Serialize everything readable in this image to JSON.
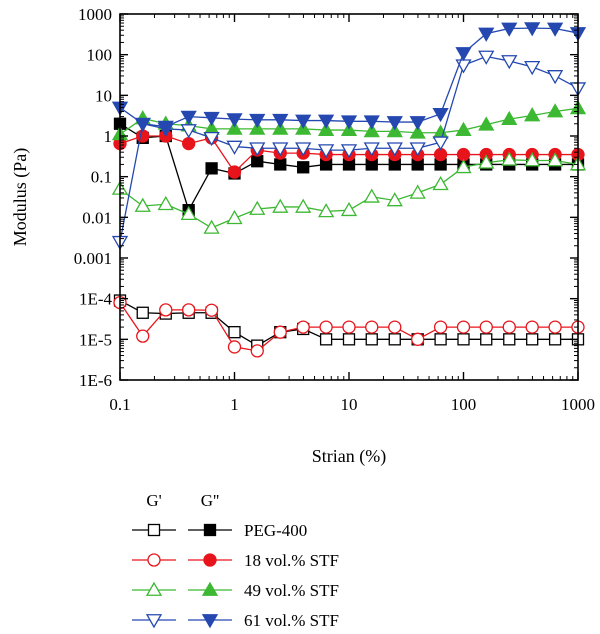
{
  "chart_data": {
    "type": "line",
    "xscale": "log",
    "yscale": "log",
    "xlabel": "Strian (%)",
    "ylabel": "Modulus (Pa)",
    "xlim": [
      0.1,
      1000
    ],
    "ylim": [
      1e-06,
      1000
    ],
    "x_ticks": [
      {
        "value": 0.1,
        "label": "0.1"
      },
      {
        "value": 1,
        "label": "1"
      },
      {
        "value": 10,
        "label": "10"
      },
      {
        "value": 100,
        "label": "100"
      },
      {
        "value": 1000,
        "label": "1000"
      }
    ],
    "y_ticks": [
      {
        "value": 1000,
        "label": "1000"
      },
      {
        "value": 100,
        "label": "100"
      },
      {
        "value": 10,
        "label": "10"
      },
      {
        "value": 1,
        "label": "1"
      },
      {
        "value": 0.1,
        "label": "0.1"
      },
      {
        "value": 0.01,
        "label": "0.01"
      },
      {
        "value": 0.001,
        "label": "0.001"
      },
      {
        "value": 0.0001,
        "label": "1E-4"
      },
      {
        "value": 1e-05,
        "label": "1E-5"
      },
      {
        "value": 1e-06,
        "label": "1E-6"
      }
    ],
    "grid": false,
    "legend": {
      "placement": "below-chart",
      "header_storage": "G'",
      "header_loss": "G''"
    },
    "x": [
      0.1,
      0.158,
      0.251,
      0.398,
      0.631,
      1,
      1.58,
      2.51,
      3.98,
      6.31,
      10,
      15.8,
      25.1,
      39.8,
      63.1,
      100,
      158,
      251,
      398,
      631,
      1000
    ],
    "series": [
      {
        "name": "PEG-400",
        "modulus": "G'",
        "color": "#000000",
        "marker": "square",
        "filled": false,
        "values": [
          9e-05,
          4.5e-05,
          4.3e-05,
          4.5e-05,
          4.5e-05,
          1.5e-05,
          7e-06,
          1.5e-05,
          1.8e-05,
          1e-05,
          1e-05,
          1e-05,
          1e-05,
          1e-05,
          1e-05,
          1e-05,
          1e-05,
          1e-05,
          1e-05,
          1e-05,
          1e-05
        ]
      },
      {
        "name": "PEG-400",
        "modulus": "G''",
        "color": "#000000",
        "marker": "square",
        "filled": true,
        "values": [
          2.0,
          0.9,
          1.0,
          0.015,
          0.16,
          0.12,
          0.24,
          0.2,
          0.17,
          0.2,
          0.2,
          0.2,
          0.2,
          0.2,
          0.2,
          0.2,
          0.2,
          0.2,
          0.2,
          0.2,
          0.2
        ]
      },
      {
        "name": "18 vol.% STF",
        "modulus": "G'",
        "color": "#e8141b",
        "marker": "circle",
        "filled": false,
        "values": [
          8e-05,
          1.2e-05,
          5.3e-05,
          5.3e-05,
          5.2e-05,
          6.5e-06,
          5.2e-06,
          1.5e-05,
          2e-05,
          2e-05,
          2e-05,
          2e-05,
          2e-05,
          1e-05,
          2e-05,
          2e-05,
          2e-05,
          2e-05,
          2e-05,
          2e-05,
          2e-05
        ]
      },
      {
        "name": "18 vol.% STF",
        "modulus": "G''",
        "color": "#e8141b",
        "marker": "circle",
        "filled": true,
        "values": [
          0.65,
          1.0,
          1.0,
          0.65,
          0.9,
          0.13,
          0.45,
          0.38,
          0.38,
          0.35,
          0.35,
          0.35,
          0.35,
          0.35,
          0.35,
          0.35,
          0.35,
          0.35,
          0.35,
          0.35,
          0.35
        ]
      },
      {
        "name": "49 vol.% STF",
        "modulus": "G'",
        "color": "#3cb832",
        "marker": "triangle-up",
        "filled": false,
        "values": [
          0.05,
          0.019,
          0.021,
          0.012,
          0.0055,
          0.0095,
          0.016,
          0.018,
          0.018,
          0.014,
          0.015,
          0.032,
          0.026,
          0.04,
          0.065,
          0.17,
          0.22,
          0.26,
          0.25,
          0.25,
          0.2
        ]
      },
      {
        "name": "49 vol.% STF",
        "modulus": "G''",
        "color": "#3cb832",
        "marker": "triangle-up",
        "filled": true,
        "values": [
          1.1,
          2.7,
          2.0,
          1.8,
          1.5,
          1.5,
          1.5,
          1.5,
          1.5,
          1.4,
          1.4,
          1.3,
          1.3,
          1.2,
          1.2,
          1.4,
          1.9,
          2.6,
          3.2,
          4.0,
          4.8
        ]
      },
      {
        "name": "61 vol.% STF",
        "modulus": "G'",
        "color": "#2448b0",
        "marker": "triangle-down",
        "filled": false,
        "values": [
          0.0025,
          2.0,
          1.5,
          1.4,
          0.9,
          0.55,
          0.5,
          0.5,
          0.5,
          0.45,
          0.45,
          0.5,
          0.5,
          0.5,
          0.7,
          55,
          90,
          70,
          50,
          30,
          15
        ]
      },
      {
        "name": "61 vol.% STF",
        "modulus": "G''",
        "color": "#2448b0",
        "marker": "triangle-down",
        "filled": true,
        "values": [
          5.0,
          2.0,
          1.7,
          3.0,
          2.8,
          2.6,
          2.5,
          2.5,
          2.4,
          2.4,
          2.3,
          2.3,
          2.2,
          2.2,
          3.5,
          110,
          330,
          440,
          450,
          440,
          340
        ]
      }
    ]
  }
}
